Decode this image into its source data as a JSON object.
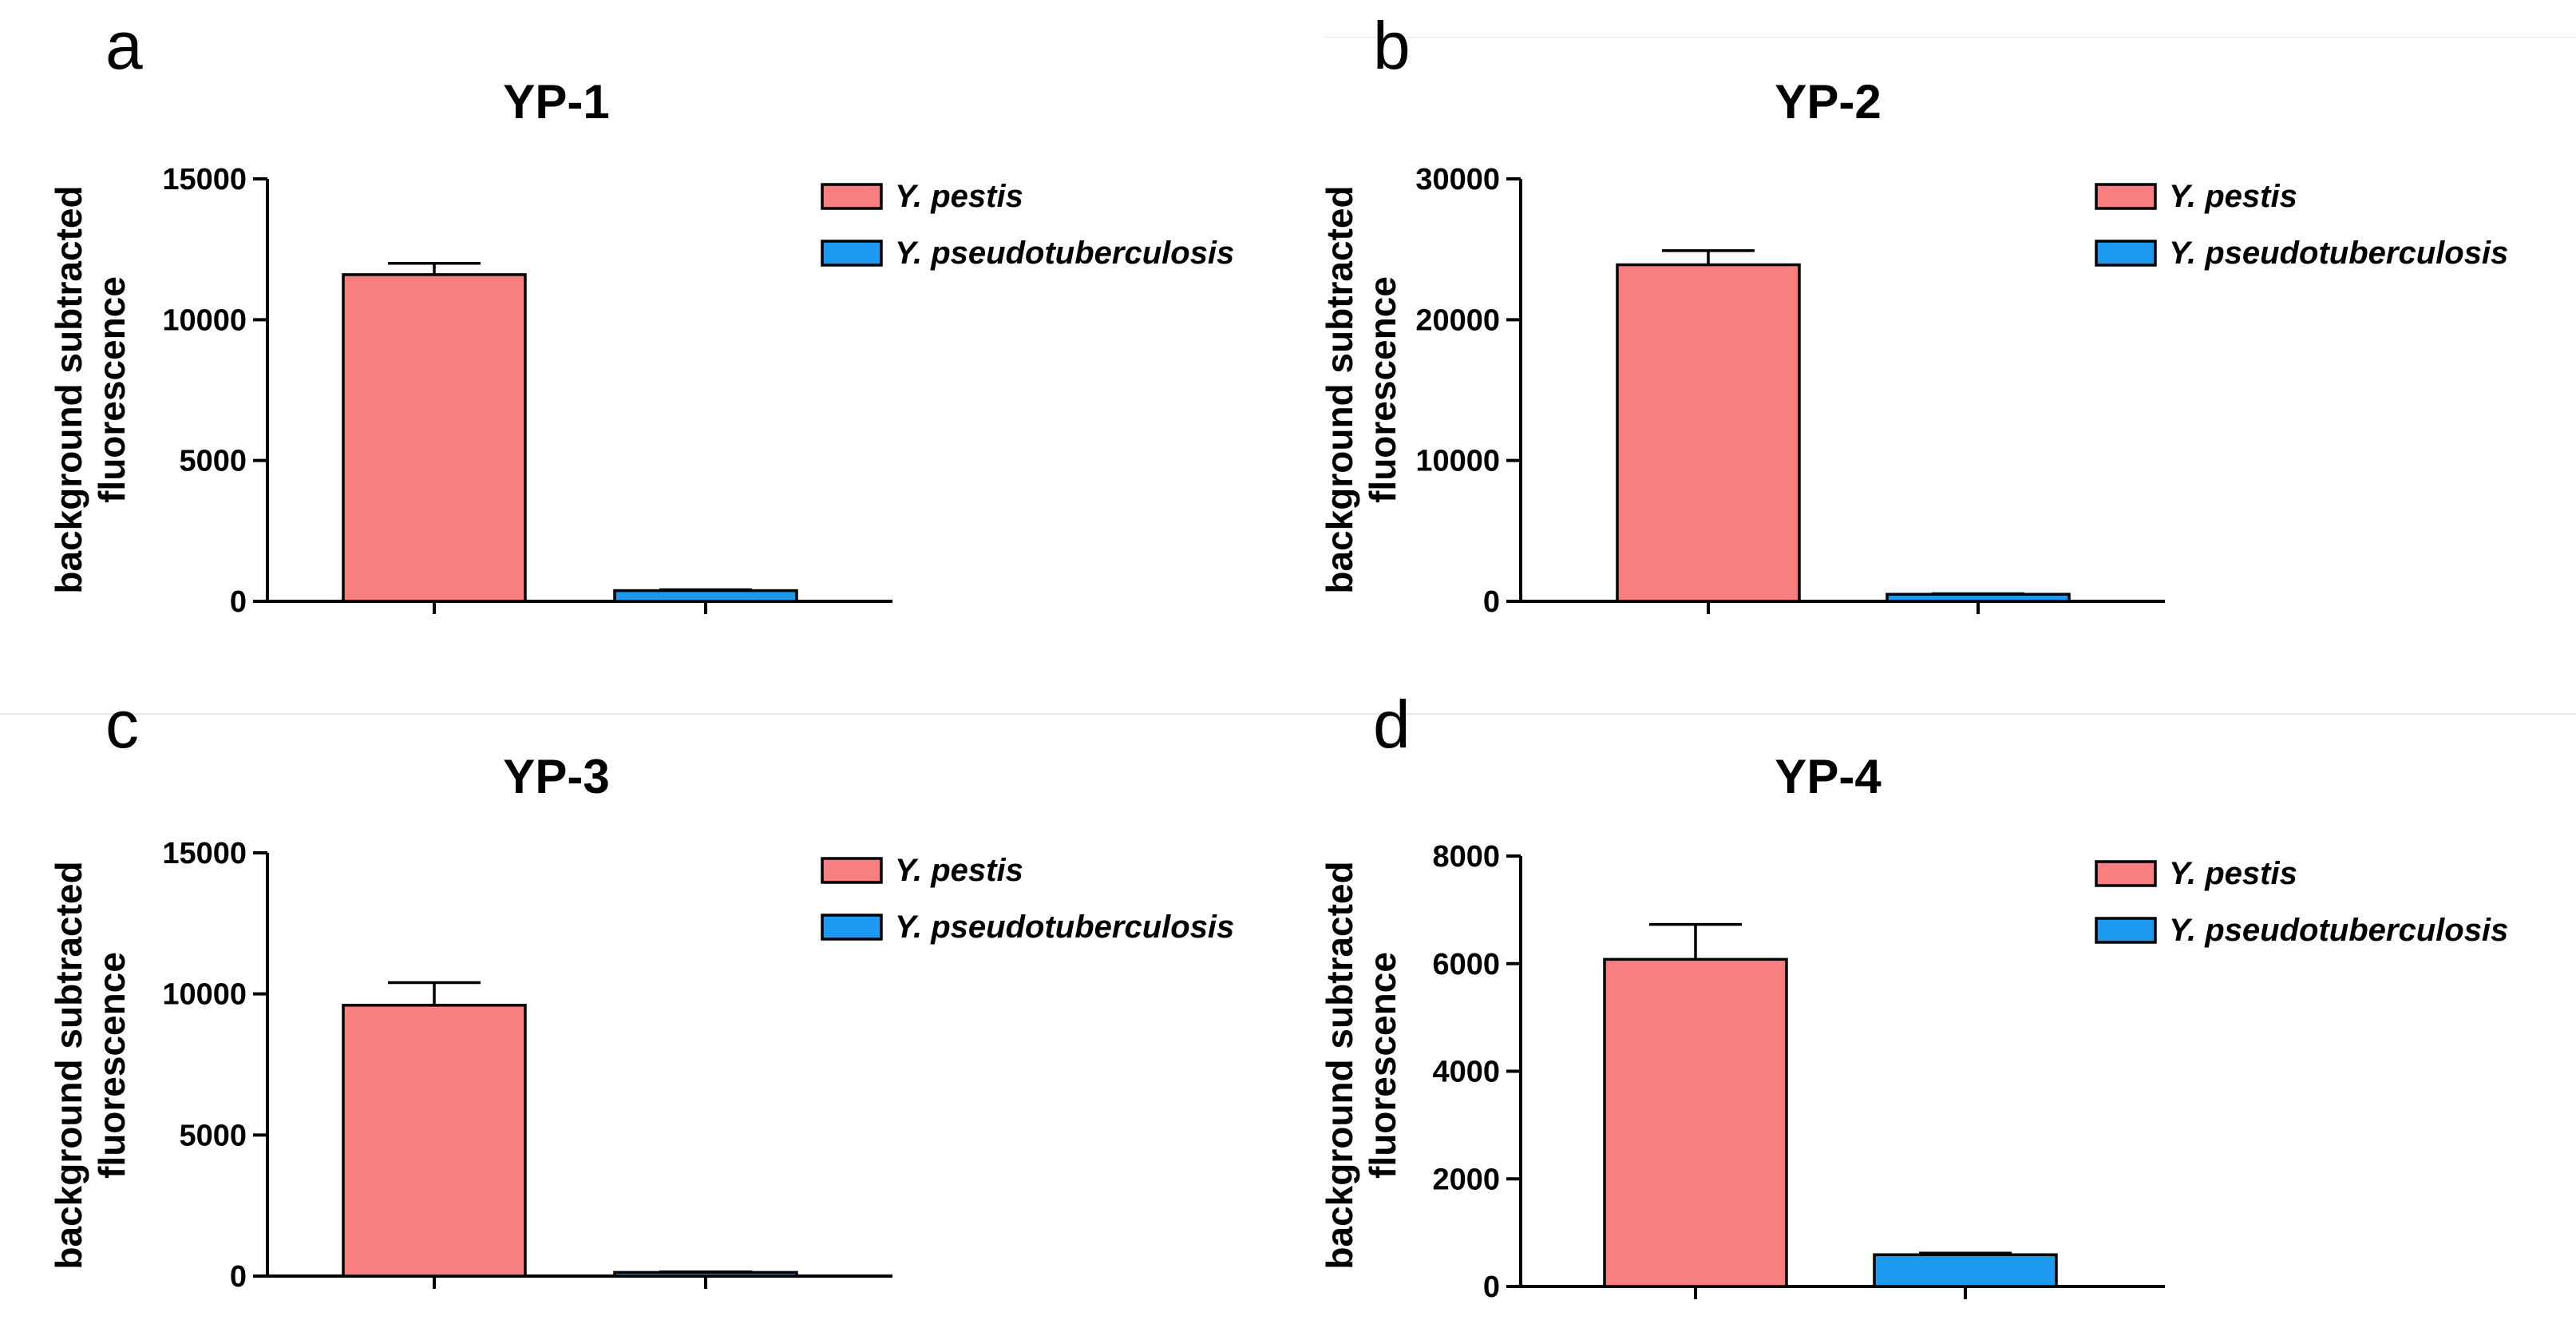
{
  "figure": {
    "colors": {
      "pestis": "#f87f7f",
      "pseudo": "#1b9af0"
    },
    "legend": [
      "Y. pestis",
      "Y. pseudotuberculosis"
    ]
  },
  "chart_data": [
    {
      "type": "bar",
      "panel": "a",
      "title": "YP-1",
      "ylabel": [
        "background subtracted",
        "fluorescence"
      ],
      "xlabel": "",
      "ylim": [
        0,
        15000
      ],
      "yticks": [
        0,
        5000,
        10000,
        15000
      ],
      "categories": [
        "Y. pestis",
        "Y. pseudotuberculosis"
      ],
      "values": [
        11600,
        380
      ],
      "errors": [
        400,
        30
      ],
      "legend_position": "top-right"
    },
    {
      "type": "bar",
      "panel": "b",
      "title": "YP-2",
      "ylabel": [
        "background subtracted",
        "fluorescence"
      ],
      "xlabel": "",
      "ylim": [
        0,
        30000
      ],
      "yticks": [
        0,
        10000,
        20000,
        30000
      ],
      "categories": [
        "Y. pestis",
        "Y. pseudotuberculosis"
      ],
      "values": [
        23900,
        500
      ],
      "errors": [
        1000,
        40
      ],
      "legend_position": "top-right"
    },
    {
      "type": "bar",
      "panel": "c",
      "title": "YP-3",
      "ylabel": [
        "background subtracted",
        "fluorescence"
      ],
      "xlabel": "",
      "ylim": [
        0,
        15000
      ],
      "yticks": [
        0,
        5000,
        10000,
        15000
      ],
      "categories": [
        "Y. pestis",
        "Y. pseudotuberculosis"
      ],
      "values": [
        9600,
        130
      ],
      "errors": [
        800,
        20
      ],
      "legend_position": "top-right"
    },
    {
      "type": "bar",
      "panel": "d",
      "title": "YP-4",
      "ylabel": [
        "background subtracted",
        "fluorescence"
      ],
      "xlabel": "",
      "ylim": [
        0,
        8000
      ],
      "yticks": [
        0,
        2000,
        4000,
        6000,
        8000
      ],
      "categories": [
        "Y. pestis",
        "Y. pseudotuberculosis"
      ],
      "values": [
        6080,
        590
      ],
      "errors": [
        650,
        30
      ],
      "legend_position": "top-right"
    }
  ]
}
